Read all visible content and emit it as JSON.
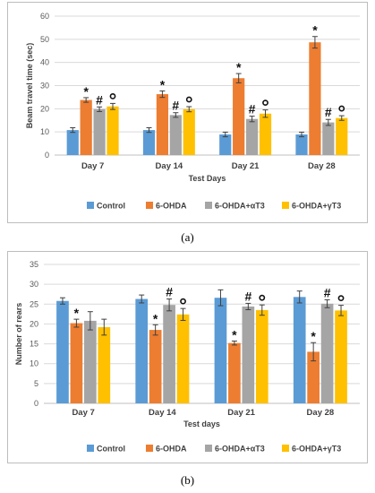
{
  "chart_data": [
    {
      "type": "bar",
      "panel_label": "(a)",
      "ylabel": "Beam travel time (sec)",
      "xlabel": "Test Days",
      "ylim": [
        0,
        60
      ],
      "yticks": [
        0,
        10,
        20,
        30,
        40,
        50,
        60
      ],
      "grid": true,
      "legend_position": "bottom",
      "categories": [
        "Day 7",
        "Day 14",
        "Day 21",
        "Day 28"
      ],
      "series": [
        {
          "name": "Control",
          "color": "#5b9bd5",
          "values": [
            10.8,
            10.8,
            8.9,
            8.9
          ],
          "errors": [
            1.0,
            1.0,
            1.0,
            1.0
          ],
          "marks": [
            "",
            "",
            "",
            ""
          ]
        },
        {
          "name": "6-OHDA",
          "color": "#ed7d31",
          "values": [
            23.8,
            26.3,
            33.2,
            48.7
          ],
          "errors": [
            1.0,
            1.4,
            2.0,
            2.5
          ],
          "marks": [
            "*",
            "*",
            "*",
            "*"
          ]
        },
        {
          "name": "6-OHDA+αT3",
          "color": "#a5a5a5",
          "values": [
            19.8,
            17.3,
            15.6,
            14.1
          ],
          "errors": [
            1.0,
            1.0,
            1.2,
            1.3
          ],
          "marks": [
            "#",
            "#",
            "#",
            "#"
          ]
        },
        {
          "name": "6-OHDA+γT3",
          "color": "#ffc000",
          "values": [
            21.0,
            19.8,
            17.9,
            16.0
          ],
          "errors": [
            1.3,
            1.1,
            1.6,
            1.0
          ],
          "marks": [
            "o",
            "o",
            "o",
            "o"
          ]
        }
      ]
    },
    {
      "type": "bar",
      "panel_label": "(b)",
      "ylabel": "Number of rears",
      "xlabel": "Test days",
      "ylim": [
        0,
        35
      ],
      "yticks": [
        0,
        5,
        10,
        15,
        20,
        25,
        30,
        35
      ],
      "grid": true,
      "legend_position": "bottom",
      "categories": [
        "Day 7",
        "Day 14",
        "Day 21",
        "Day 28"
      ],
      "series": [
        {
          "name": "Control",
          "color": "#5b9bd5",
          "values": [
            25.8,
            26.3,
            26.6,
            26.8
          ],
          "errors": [
            0.8,
            1.0,
            2.0,
            1.5
          ],
          "marks": [
            "",
            "",
            "",
            ""
          ]
        },
        {
          "name": "6-OHDA",
          "color": "#ed7d31",
          "values": [
            20.2,
            18.5,
            15.2,
            13.0
          ],
          "errors": [
            1.0,
            1.3,
            0.5,
            2.3
          ],
          "marks": [
            "*",
            "*",
            "*",
            "*"
          ]
        },
        {
          "name": "6-OHDA+αT3",
          "color": "#a5a5a5",
          "values": [
            20.8,
            24.8,
            24.4,
            25.1
          ],
          "errors": [
            2.3,
            1.5,
            0.8,
            1.0
          ],
          "marks": [
            "",
            "#",
            "#",
            "#"
          ]
        },
        {
          "name": "6-OHDA+γT3",
          "color": "#ffc000",
          "values": [
            19.2,
            22.4,
            23.5,
            23.4
          ],
          "errors": [
            2.0,
            1.5,
            1.3,
            1.3
          ],
          "marks": [
            "",
            "o",
            "o",
            "o"
          ]
        }
      ]
    }
  ]
}
